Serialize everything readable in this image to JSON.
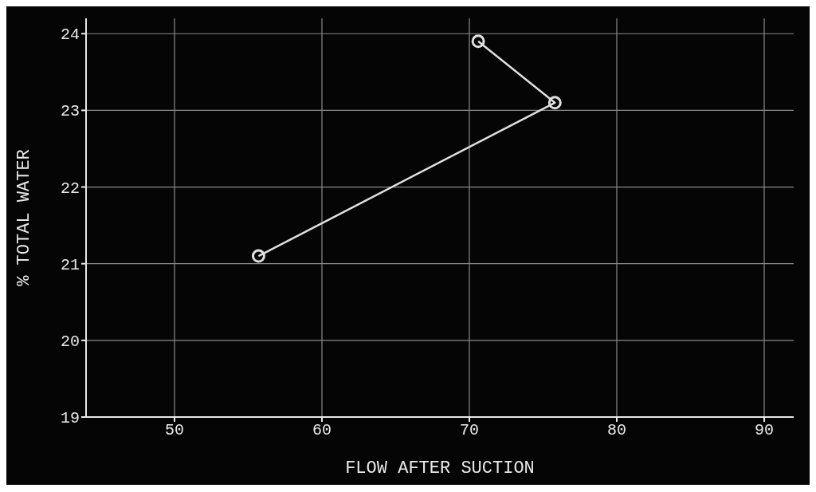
{
  "chart_data": {
    "type": "line",
    "xlabel": "FLOW AFTER SUCTION",
    "ylabel": "% TOTAL WATER",
    "x": [
      55.7,
      75.8,
      70.6
    ],
    "series": [
      {
        "color": "#e0e0e0",
        "values": [
          21.1,
          23.1,
          23.9
        ]
      }
    ],
    "xlim": [
      44,
      92
    ],
    "xticks": [
      50,
      60,
      70,
      80,
      90
    ],
    "ylim": [
      19,
      24.2
    ],
    "yticks": [
      19,
      20,
      21,
      22,
      23,
      24
    ],
    "grid": true,
    "marker": "circle",
    "line_style": "solid"
  }
}
